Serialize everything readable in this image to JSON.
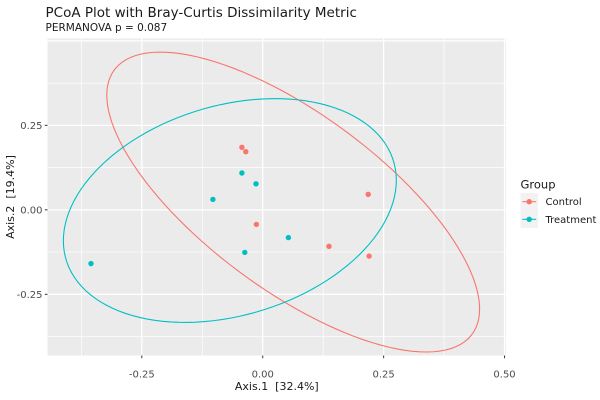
{
  "title": "PCoA Plot with Bray-Curtis Dissimilarity Metric",
  "subtitle": "PERMANOVA p = 0.087",
  "legend": {
    "title": "Group",
    "items": [
      {
        "label": "Control",
        "color": "#F8766D"
      },
      {
        "label": "Treatment",
        "color": "#00BFC4"
      }
    ]
  },
  "colors": {
    "control": "#F8766D",
    "treatment": "#00BFC4",
    "panel_bg": "#EBEBEB",
    "gridline": "#FFFFFF",
    "tick_mark": "#333333",
    "tick_text": "#4D4D4D",
    "text": "#1A1A1A",
    "legend_key_bg": "#F2F2F2"
  },
  "chart_data": {
    "type": "scatter",
    "title": "PCoA Plot with Bray-Curtis Dissimilarity Metric",
    "subtitle": "PERMANOVA p = 0.087",
    "xlabel": "Axis.1  [32.4%]",
    "ylabel": "Axis.2  [19.4%]",
    "xlim": [
      -0.445,
      0.503
    ],
    "ylim": [
      -0.431,
      0.507
    ],
    "grid": true,
    "legend_position": "right",
    "x_ticks": {
      "values": [
        -0.25,
        0,
        0.25,
        0.5
      ],
      "labels": [
        "-0.25",
        "0.00",
        "0.25",
        "0.50"
      ]
    },
    "y_ticks": {
      "values": [
        -0.25,
        0,
        0.25
      ],
      "labels": [
        "-0.25",
        "0.00",
        "0.25"
      ]
    },
    "x_grid_major": [
      -0.25,
      0,
      0.25,
      0.5
    ],
    "y_grid_major": [
      -0.25,
      0,
      0.25,
      0.5
    ],
    "x_grid_minor": [
      -0.375,
      -0.125,
      0.125,
      0.375
    ],
    "y_grid_minor": [
      -0.375,
      -0.125,
      0.125,
      0.375
    ],
    "series": [
      {
        "name": "Control",
        "color": "#F8766D",
        "points": [
          [
            -0.043,
            0.185
          ],
          [
            -0.035,
            0.172
          ],
          [
            0.218,
            0.046
          ],
          [
            -0.013,
            -0.043
          ],
          [
            0.137,
            -0.108
          ],
          [
            0.22,
            -0.137
          ]
        ],
        "ellipse": {
          "cx": 0.063,
          "cy": 0.023,
          "a": 0.545,
          "b": 0.22,
          "angle_deg": -50.6
        }
      },
      {
        "name": "Treatment",
        "color": "#00BFC4",
        "points": [
          [
            -0.043,
            0.109
          ],
          [
            -0.014,
            0.077
          ],
          [
            -0.103,
            0.031
          ],
          [
            0.053,
            -0.082
          ],
          [
            -0.037,
            -0.126
          ],
          [
            -0.355,
            -0.159
          ]
        ],
        "ellipse": {
          "cx": -0.068,
          "cy": -0.002,
          "a": 0.381,
          "b": 0.288,
          "angle_deg": 40.9
        }
      }
    ]
  }
}
